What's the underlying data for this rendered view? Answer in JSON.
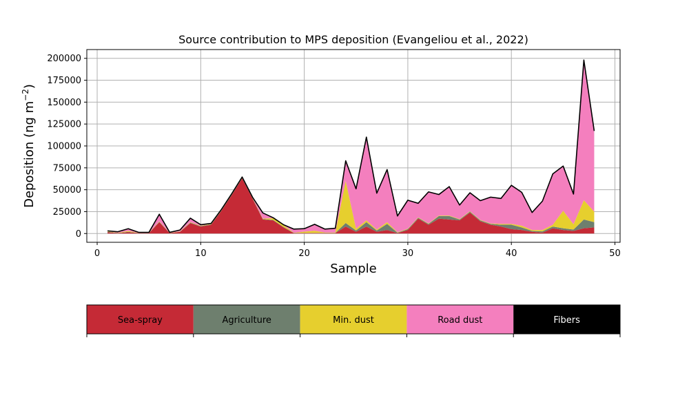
{
  "chart_data": {
    "type": "area",
    "stacked": true,
    "title": "Source contribution to MPS deposition (Evangeliou et al., 2022)",
    "xlabel": "Sample",
    "ylabel": "Deposition (ng m",
    "ylabel_sup": "−2",
    "ylabel_close": ")",
    "xlim": [
      -1,
      50.5
    ],
    "ylim": [
      -10000,
      210000
    ],
    "xticks": [
      0,
      10,
      20,
      30,
      40,
      50
    ],
    "yticks": [
      0,
      25000,
      50000,
      75000,
      100000,
      125000,
      150000,
      175000,
      200000
    ],
    "grid": true,
    "x": [
      1,
      2,
      3,
      4,
      5,
      6,
      7,
      8,
      9,
      10,
      11,
      12,
      13,
      14,
      15,
      16,
      17,
      18,
      19,
      20,
      21,
      22,
      23,
      24,
      25,
      26,
      27,
      28,
      29,
      30,
      31,
      32,
      33,
      34,
      35,
      36,
      37,
      38,
      39,
      40,
      41,
      42,
      43,
      44,
      45,
      46,
      47,
      48
    ],
    "series": [
      {
        "name": "Sea-spray",
        "color": "#c52a36",
        "values": [
          1500,
          500,
          1500,
          500,
          500,
          13000,
          500,
          2000,
          12000,
          8000,
          10000,
          26000,
          44000,
          63000,
          40000,
          16000,
          15000,
          7000,
          500,
          500,
          500,
          500,
          500,
          8000,
          2000,
          8000,
          2000,
          4000,
          500,
          4000,
          17000,
          10000,
          17000,
          16000,
          15000,
          24000,
          14000,
          10000,
          8000,
          5000,
          4000,
          2000,
          1000,
          6000,
          4000,
          3000,
          6000,
          7000
        ]
      },
      {
        "name": "Agriculture",
        "color": "#6e7f6e",
        "values": [
          500,
          200,
          500,
          100,
          100,
          500,
          100,
          200,
          500,
          500,
          500,
          500,
          500,
          500,
          500,
          500,
          500,
          500,
          200,
          200,
          200,
          200,
          200,
          4000,
          1500,
          5000,
          1500,
          7000,
          500,
          1000,
          1000,
          1000,
          3000,
          4000,
          1000,
          1000,
          1000,
          1000,
          2000,
          5000,
          3000,
          1000,
          1500,
          2000,
          2000,
          1500,
          10000,
          6000
        ]
      },
      {
        "name": "Min. dust",
        "color": "#e6cf2e",
        "values": [
          500,
          300,
          1000,
          200,
          200,
          500,
          200,
          300,
          500,
          500,
          500,
          500,
          500,
          500,
          500,
          500,
          2000,
          2000,
          200,
          1500,
          2500,
          500,
          500,
          48000,
          2000,
          2000,
          1000,
          2000,
          500,
          500,
          500,
          500,
          500,
          500,
          500,
          500,
          500,
          500,
          1000,
          1000,
          2000,
          1000,
          1500,
          2000,
          20000,
          6000,
          22000,
          12000
        ]
      },
      {
        "name": "Road dust",
        "color": "#f47fbe",
        "values": [
          500,
          1000,
          2500,
          500,
          500,
          8000,
          500,
          1500,
          4500,
          1000,
          500,
          500,
          500,
          500,
          500,
          6500,
          500,
          500,
          4100,
          3300,
          7300,
          3800,
          4800,
          23000,
          45500,
          95000,
          41500,
          60000,
          18500,
          32500,
          16000,
          36000,
          24000,
          33000,
          16000,
          21000,
          22000,
          30000,
          29000,
          44000,
          38000,
          20000,
          33000,
          58000,
          51000,
          34500,
          160000,
          92000
        ]
      },
      {
        "name": "Fibers",
        "color": "#000000",
        "values": [
          50,
          50,
          50,
          50,
          50,
          50,
          50,
          50,
          50,
          50,
          50,
          50,
          50,
          50,
          50,
          50,
          50,
          50,
          50,
          50,
          50,
          50,
          50,
          50,
          50,
          50,
          50,
          50,
          50,
          50,
          50,
          50,
          50,
          50,
          50,
          50,
          50,
          50,
          50,
          50,
          50,
          50,
          50,
          50,
          50,
          50,
          50,
          50
        ]
      }
    ],
    "legend": {
      "placement": "bottom",
      "style": "colorbar",
      "entries": [
        {
          "label": "Sea-spray",
          "color": "#c52a36",
          "text_color": "#000000"
        },
        {
          "label": "Agriculture",
          "color": "#6e7f6e",
          "text_color": "#000000"
        },
        {
          "label": "Min. dust",
          "color": "#e6cf2e",
          "text_color": "#000000"
        },
        {
          "label": "Road dust",
          "color": "#f47fbe",
          "text_color": "#000000"
        },
        {
          "label": "Fibers",
          "color": "#000000",
          "text_color": "#ffffff"
        }
      ]
    }
  }
}
